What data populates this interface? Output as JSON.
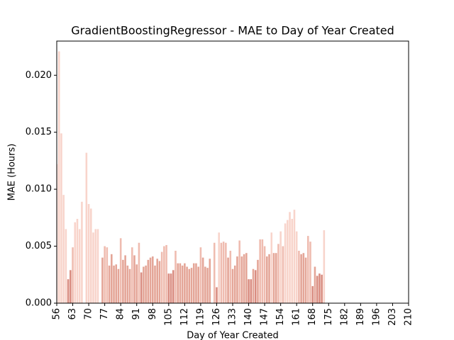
{
  "chart_data": {
    "type": "bar",
    "title": "GradientBoostingRegressor - MAE to Day of Year Created",
    "xlabel": "Day of Year Created",
    "ylabel": "MAE (Hours)",
    "x": [
      56,
      57,
      58,
      59,
      60,
      61,
      62,
      63,
      64,
      65,
      66,
      67,
      68,
      69,
      70,
      71,
      72,
      73,
      74,
      75,
      76,
      77,
      78,
      79,
      80,
      81,
      82,
      83,
      84,
      85,
      86,
      87,
      88,
      89,
      90,
      91,
      92,
      93,
      94,
      95,
      96,
      97,
      98,
      99,
      100,
      101,
      102,
      103,
      104,
      105,
      106,
      107,
      108,
      109,
      110,
      111,
      112,
      113,
      114,
      115,
      116,
      117,
      118,
      119,
      120,
      121,
      122,
      123,
      124,
      125,
      126,
      127,
      128,
      129,
      130,
      131,
      132,
      133,
      134,
      135,
      136,
      137,
      138,
      139,
      140,
      141,
      142,
      143,
      144,
      145,
      146,
      147,
      148,
      149,
      150,
      151,
      152,
      153,
      154,
      155,
      156,
      157,
      158,
      159,
      160,
      161,
      162,
      163,
      164,
      165,
      166,
      167,
      168,
      169,
      170,
      171,
      172,
      173
    ],
    "values": [
      0.0122,
      0.0221,
      0.0149,
      0.0095,
      0.0065,
      0.0021,
      0.0029,
      0.0049,
      0.0071,
      0.0074,
      0.0065,
      0.0089,
      null,
      0.0132,
      0.0087,
      0.0083,
      0.0062,
      0.0065,
      0.0065,
      null,
      0.004,
      0.005,
      0.0049,
      0.0033,
      0.0043,
      0.0033,
      0.0034,
      0.003,
      0.0057,
      0.0038,
      0.0042,
      0.0033,
      0.003,
      0.0049,
      0.0042,
      0.0034,
      0.0053,
      0.0027,
      0.0032,
      0.0033,
      0.0038,
      0.004,
      0.0041,
      0.0033,
      0.0039,
      0.0037,
      0.0045,
      0.005,
      0.0051,
      0.0026,
      0.0026,
      0.0029,
      0.0046,
      0.0035,
      0.0035,
      0.0033,
      0.0035,
      0.0032,
      0.003,
      0.0031,
      0.0035,
      0.0035,
      0.0032,
      0.0049,
      0.004,
      0.0032,
      0.0031,
      0.0039,
      null,
      0.0053,
      0.0014,
      0.0062,
      0.0053,
      0.0054,
      0.0053,
      0.004,
      0.0046,
      0.003,
      0.0033,
      0.0041,
      0.0055,
      0.0041,
      0.0043,
      0.0044,
      0.0021,
      0.0021,
      0.003,
      0.0029,
      0.0038,
      0.0056,
      0.0056,
      0.005,
      0.0041,
      0.0043,
      0.0062,
      0.0044,
      0.0044,
      0.0052,
      0.0063,
      0.005,
      0.007,
      0.0073,
      0.008,
      0.0074,
      0.0082,
      0.0063,
      0.0046,
      0.0043,
      0.0044,
      0.004,
      0.0059,
      0.0054,
      0.0015,
      0.0032,
      0.0024,
      0.0026,
      0.0025,
      0.0064
    ],
    "colors": [
      "#f8d4cb",
      "#f8d4cb",
      "#f8d4cb",
      "#f8d4cb",
      "#f8d4cb",
      "#d98c80",
      "#d98c80",
      "#efbcb0",
      "#f8d4cb",
      "#f8d4cb",
      "#f8d4cb",
      "#f8d4cb",
      null,
      "#f8d4cb",
      "#f8d4cb",
      "#f8d4cb",
      "#f8d4cb",
      "#f8d4cb",
      "#f8d4cb",
      null,
      "#e4a597",
      "#efbcb0",
      "#efbcb0",
      "#e4a597",
      "#e4a597",
      "#e4a597",
      "#e4a597",
      "#e4a597",
      "#efbcb0",
      "#e4a597",
      "#e4a597",
      "#e4a597",
      "#e4a597",
      "#efbcb0",
      "#e4a597",
      "#e4a597",
      "#efbcb0",
      "#d98c80",
      "#e4a597",
      "#e4a597",
      "#e4a597",
      "#e4a597",
      "#e4a597",
      "#e4a597",
      "#e4a597",
      "#e4a597",
      "#efbcb0",
      "#efbcb0",
      "#efbcb0",
      "#d98c80",
      "#d98c80",
      "#d98c80",
      "#efbcb0",
      "#e4a597",
      "#e4a597",
      "#e4a597",
      "#e4a597",
      "#e4a597",
      "#e4a597",
      "#e4a597",
      "#e4a597",
      "#e4a597",
      "#e4a597",
      "#efbcb0",
      "#e4a597",
      "#e4a597",
      "#e4a597",
      "#e4a597",
      null,
      "#efbcb0",
      "#d98c80",
      "#f8d4cb",
      "#efbcb0",
      "#efbcb0",
      "#efbcb0",
      "#e4a597",
      "#efbcb0",
      "#e4a597",
      "#e4a597",
      "#e4a597",
      "#efbcb0",
      "#e4a597",
      "#e4a597",
      "#e4a597",
      "#d98c80",
      "#d98c80",
      "#e4a597",
      "#d98c80",
      "#e4a597",
      "#efbcb0",
      "#efbcb0",
      "#efbcb0",
      "#e4a597",
      "#e4a597",
      "#f8d4cb",
      "#e4a597",
      "#e4a597",
      "#efbcb0",
      "#f8d4cb",
      "#efbcb0",
      "#f8d4cb",
      "#f8d4cb",
      "#f8d4cb",
      "#f8d4cb",
      "#f8d4cb",
      "#f8d4cb",
      "#efbcb0",
      "#e4a597",
      "#e4a597",
      "#e4a597",
      "#efbcb0",
      "#efbcb0",
      "#d98c80",
      "#e4a597",
      "#d98c80",
      "#d98c80",
      "#d98c80",
      "#f8d4cb"
    ],
    "xlim": [
      56,
      210
    ],
    "xticks": [
      56,
      63,
      70,
      77,
      84,
      91,
      98,
      105,
      112,
      119,
      126,
      133,
      140,
      147,
      154,
      161,
      168,
      175,
      182,
      189,
      196,
      203,
      210
    ],
    "ylim": [
      0,
      0.023
    ],
    "yticks": [
      {
        "value": 0,
        "label": "0.000"
      },
      {
        "value": 0.005,
        "label": "0.005"
      },
      {
        "value": 0.01,
        "label": "0.010"
      },
      {
        "value": 0.015,
        "label": "0.015"
      },
      {
        "value": 0.02,
        "label": "0.020"
      }
    ],
    "grid": false
  }
}
